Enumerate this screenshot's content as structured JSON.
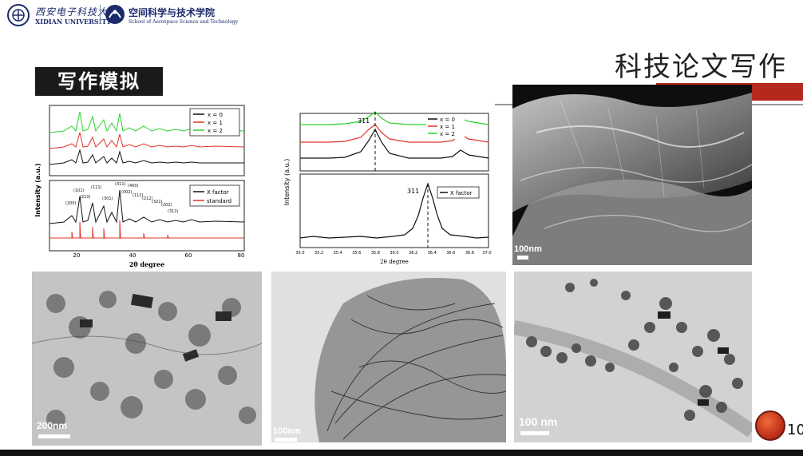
{
  "header": {
    "university_cn": "西安电子科技大学",
    "university_en": "XIDIAN UNIVERSITY",
    "school_cn": "空间科学与技术学院",
    "school_en": "School of Aerospace Science and Technology"
  },
  "slide": {
    "title": "科技论文写作",
    "section_badge": "写作模拟",
    "page_number": "10"
  },
  "figures": {
    "xrd_left": {
      "top_ylabel": "Intensity (a.u.)",
      "top_legend": [
        "x = 0",
        "x = 1",
        "x = 2"
      ],
      "bottom_legend": [
        "X factor",
        "standard"
      ],
      "peak_labels": [
        "(200)",
        "(101)",
        "(210)",
        "(111)",
        "(301)",
        "(311)",
        "(002)",
        "(112)",
        "(212)",
        "(321)",
        "(202)",
        "(400)",
        "(312)"
      ],
      "xlabel": "2θ degree",
      "xticks": [
        "20",
        "40",
        "60",
        "80"
      ]
    },
    "xrd_right": {
      "ylabel": "Intensity (a.u.)",
      "top_legend": [
        "x = 0",
        "x = 1",
        "x = 2"
      ],
      "bottom_legend": [
        "X factor"
      ],
      "peak_label": "311",
      "xlabel": "2θ degree",
      "xticks": [
        "35.0",
        "35.2",
        "35.4",
        "35.6",
        "35.8",
        "36.0",
        "36.2",
        "36.4",
        "36.6",
        "36.8",
        "37.0"
      ]
    },
    "scale_bars": {
      "top_right": "100nm",
      "bottom_left": "200nm",
      "bottom_middle": "100nm",
      "bottom_right": "100 nm"
    }
  },
  "colors": {
    "accent_red": "#b5281d",
    "series_x0": "#111111",
    "series_x1": "#e0342a",
    "series_x2": "#2bd12b"
  }
}
